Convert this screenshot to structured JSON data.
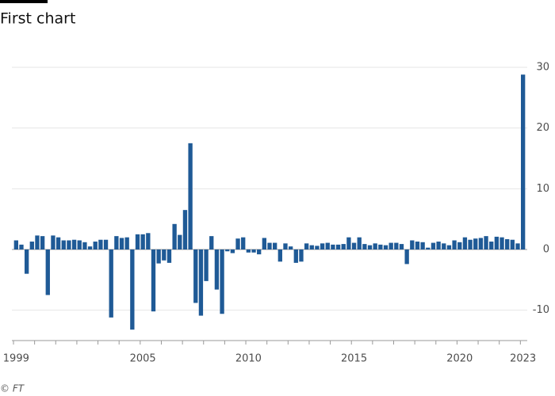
{
  "chart_data": {
    "type": "bar",
    "title": "First chart",
    "source": "© FT",
    "categories": [
      "1999",
      null,
      null,
      null,
      null,
      null,
      null,
      null,
      null,
      null,
      null,
      null,
      null,
      null,
      null,
      null,
      null,
      null,
      null,
      null,
      null,
      null,
      null,
      null,
      "2005",
      null,
      null,
      null,
      null,
      null,
      null,
      null,
      null,
      null,
      null,
      null,
      null,
      null,
      null,
      null,
      null,
      null,
      null,
      null,
      "2010",
      null,
      null,
      null,
      null,
      null,
      null,
      null,
      null,
      null,
      null,
      null,
      null,
      null,
      null,
      null,
      null,
      null,
      null,
      null,
      "2015",
      null,
      null,
      null,
      null,
      null,
      null,
      null,
      null,
      null,
      null,
      null,
      null,
      null,
      null,
      null,
      null,
      null,
      null,
      null,
      "2020",
      null,
      null,
      null,
      null,
      null,
      null,
      null,
      null,
      null,
      null,
      null,
      "2023"
    ],
    "values": [
      1.5,
      0.8,
      -4,
      1.3,
      2.3,
      2.2,
      -7.5,
      2.3,
      2.0,
      1.5,
      1.5,
      1.6,
      1.5,
      1.2,
      0.5,
      1.3,
      1.6,
      1.6,
      -11.2,
      2.2,
      1.9,
      2.0,
      -13.2,
      2.5,
      2.5,
      2.7,
      -10.2,
      -2.3,
      -1.8,
      -2.2,
      4.2,
      2.4,
      6.5,
      17.5,
      -8.8,
      -10.9,
      -5.2,
      2.2,
      -6.6,
      -10.6,
      -0.3,
      -0.6,
      1.8,
      2.0,
      -0.5,
      -0.5,
      -0.8,
      1.9,
      1.1,
      1.1,
      -2.0,
      1.0,
      0.5,
      -2.2,
      -2.0,
      1.0,
      0.7,
      0.6,
      1.0,
      1.1,
      0.8,
      0.8,
      0.9,
      2.0,
      1.1,
      2.0,
      0.9,
      0.7,
      1.0,
      0.8,
      0.7,
      1.1,
      1.1,
      0.9,
      -2.4,
      1.5,
      1.3,
      1.2,
      0.3,
      1.1,
      1.3,
      1.0,
      0.7,
      1.5,
      1.2,
      2.0,
      1.6,
      1.8,
      1.9,
      2.2,
      1.3,
      2.1,
      2.0,
      1.7,
      1.6,
      1.0,
      28.8
    ],
    "color": "#1f5a96",
    "ylim": [
      -15,
      30
    ],
    "yticks": [
      -10,
      0,
      10,
      20,
      30
    ],
    "grid": true
  }
}
